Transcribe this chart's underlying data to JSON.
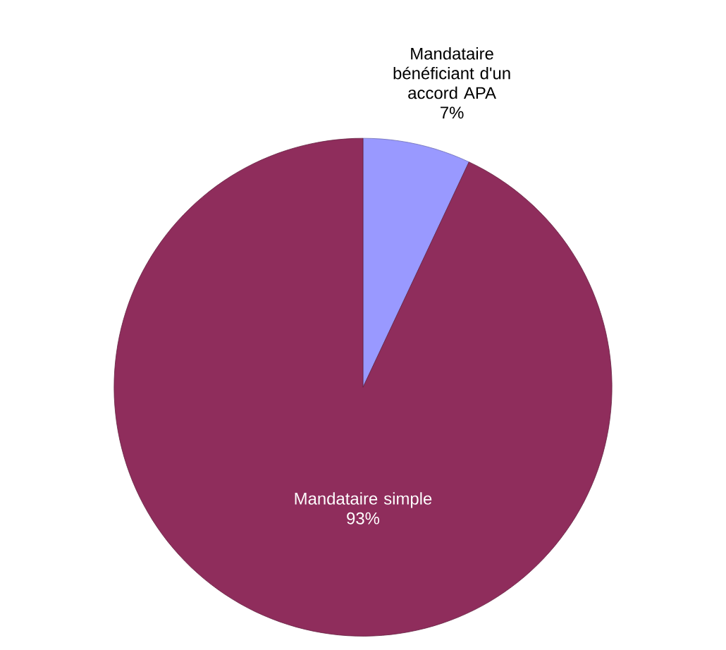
{
  "chart_data": {
    "type": "pie",
    "categories": [
      "Mandataire bénéficiant d'un accord APA",
      "Mandataire simple"
    ],
    "values": [
      7,
      93
    ],
    "value_labels": [
      "7%",
      "93%"
    ],
    "colors": [
      "#9999ff",
      "#8f2d5c"
    ]
  }
}
